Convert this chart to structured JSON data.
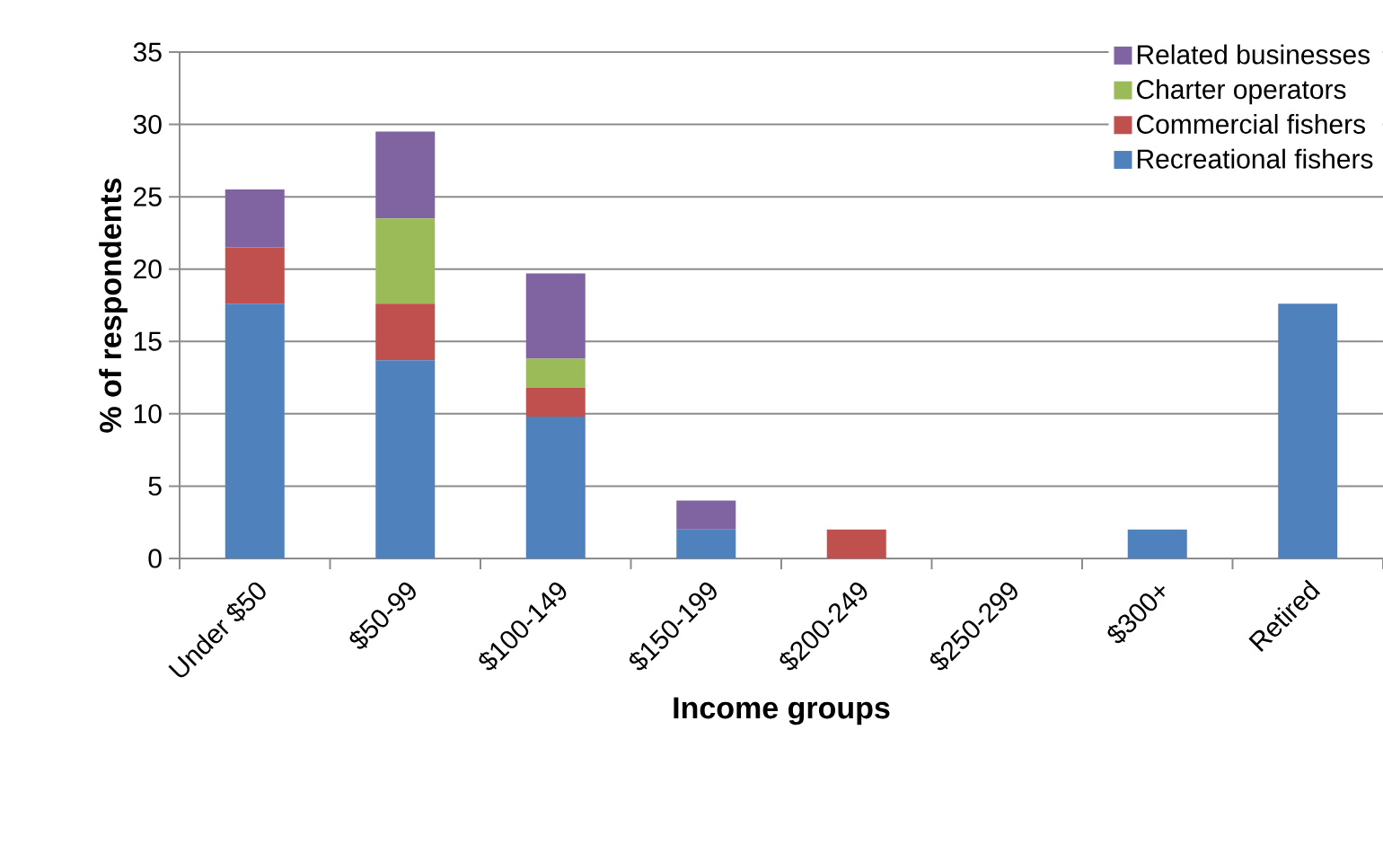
{
  "chart_data": {
    "type": "bar",
    "stacked": true,
    "xlabel": "Income groups",
    "ylabel": "% of respondents",
    "categories": [
      "Under $50",
      "$50-99",
      "$100-149",
      "$150-199",
      "$200-249",
      "$250-299",
      "$300+",
      "Retired"
    ],
    "series": [
      {
        "name": "Recreational fishers",
        "color": "#4f81bd",
        "values": [
          17.6,
          13.7,
          9.8,
          2.0,
          0,
          0,
          2.0,
          17.6
        ]
      },
      {
        "name": "Commercial fishers",
        "color": "#c0504d",
        "values": [
          3.9,
          3.9,
          2.0,
          0,
          2.0,
          0,
          0,
          0
        ]
      },
      {
        "name": "Charter operators",
        "color": "#9bbb59",
        "values": [
          0,
          5.9,
          2.0,
          0,
          0,
          0,
          0,
          0
        ]
      },
      {
        "name": "Related businesses",
        "color": "#8064a2",
        "values": [
          4.0,
          6.0,
          5.9,
          2.0,
          0,
          0,
          0,
          0
        ]
      }
    ],
    "ylim": [
      0,
      35
    ],
    "yticks": [
      0,
      5,
      10,
      15,
      20,
      25,
      30,
      35
    ],
    "grid": "y",
    "legend": "top right"
  }
}
